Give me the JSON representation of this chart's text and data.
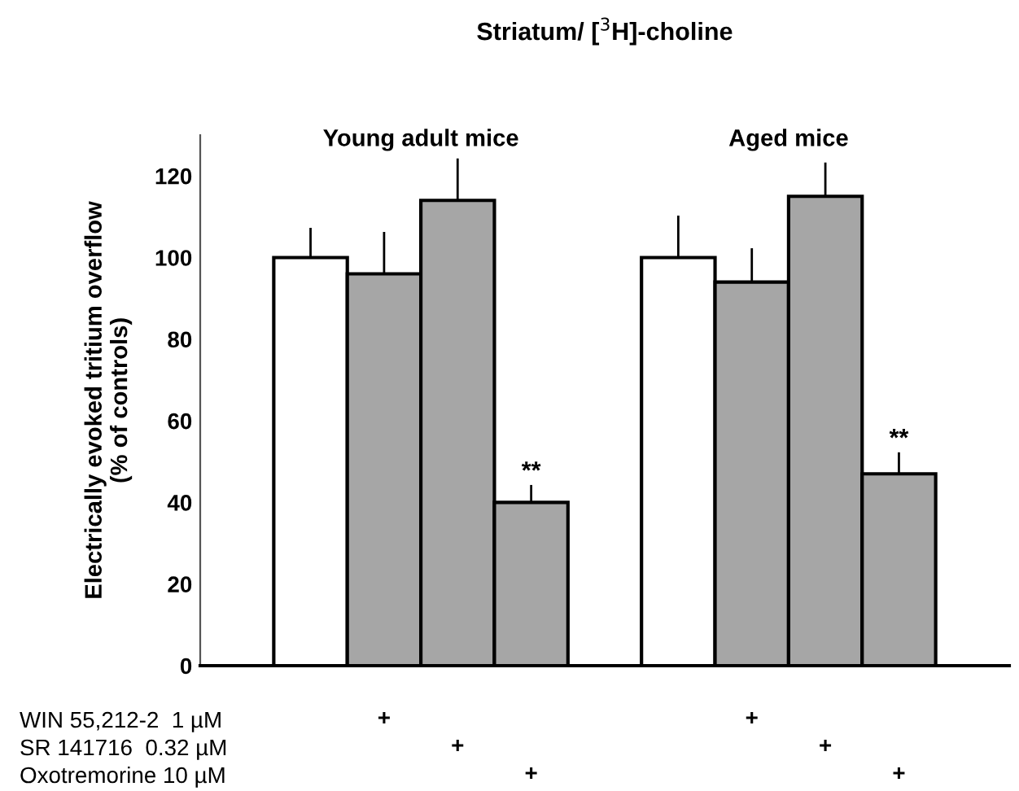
{
  "chart_data": [
    {
      "type": "bar",
      "title": "Striatum/ [$^{3}$H]-choline",
      "ylabel": "Electrically evoked tritium overflow\n(% of controls)",
      "categories": [
        null,
        null,
        null,
        null,
        null,
        null,
        null,
        null,
        null,
        null,
        null
      ],
      "values": [
        null,
        100,
        96,
        114,
        40,
        null,
        100,
        94,
        115,
        47,
        null
      ],
      "colors": [
        null,
        "#ffffff",
        "#a6a6a6",
        "#a6a6a6",
        "#a6a6a6",
        null,
        "#ffffff",
        "#a6a6a6",
        "#a6a6a6",
        "#a6a6a6",
        null
      ],
      "errors": [
        null,
        [
          100,
          107
        ],
        [
          96,
          106
        ],
        [
          114,
          124
        ],
        [
          40,
          44
        ],
        null,
        [
          100,
          110
        ],
        [
          94,
          102
        ],
        [
          115,
          123
        ],
        [
          47,
          52
        ],
        null
      ],
      "value_labels": [
        null,
        null,
        null,
        null,
        "**",
        null,
        null,
        null,
        null,
        "**",
        null
      ],
      "ylim": [
        0,
        130
      ],
      "yticks": [
        0,
        20,
        40,
        60,
        80,
        100,
        120
      ],
      "tick_labels": "y",
      "grid": false,
      "annotations": [
        "Young adult mice",
        "Aged mice"
      ]
    },
    {
      "type": "other",
      "categories": [
        null,
        null,
        null,
        null,
        null,
        null,
        null,
        null,
        null,
        null,
        null
      ],
      "y_categories": [
        "WIN 55,212-2  1 µM",
        "SR 141716  0.32 µM",
        "Oxotremorine 10 µM"
      ],
      "cell_labels": [
        [
          null,
          null,
          "+",
          null,
          null,
          null,
          null,
          "+",
          null,
          null,
          null
        ],
        [
          null,
          null,
          null,
          "+",
          null,
          null,
          null,
          null,
          "+",
          null,
          null
        ],
        [
          null,
          null,
          null,
          null,
          "+",
          null,
          null,
          null,
          null,
          "+",
          null
        ]
      ]
    }
  ]
}
